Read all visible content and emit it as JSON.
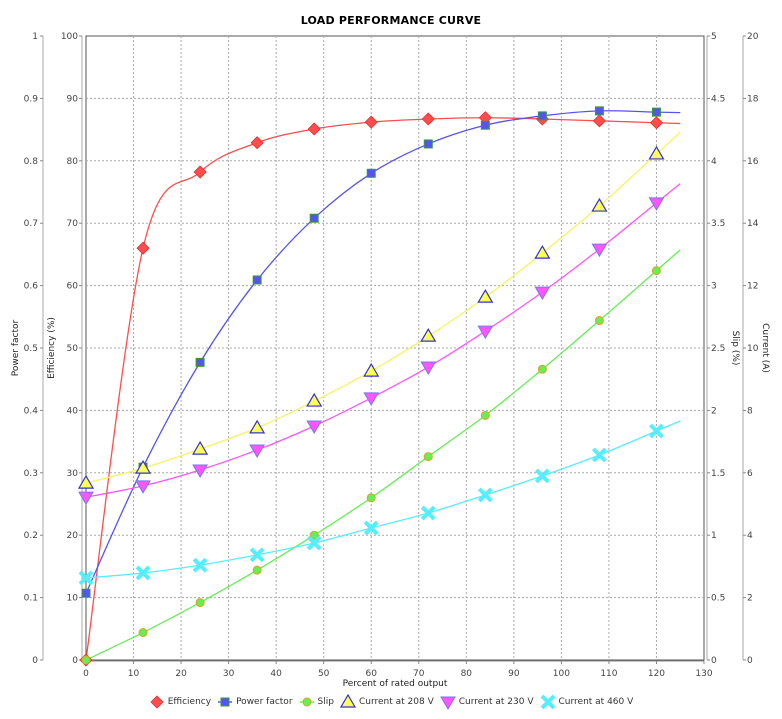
{
  "chart_data": {
    "type": "line",
    "title": "LOAD PERFORMANCE CURVE",
    "xlabel": "Percent of rated output",
    "xlim": [
      0,
      130
    ],
    "xticks": [
      0,
      10,
      20,
      30,
      40,
      50,
      60,
      70,
      80,
      90,
      100,
      110,
      120,
      130
    ],
    "x": [
      0,
      12,
      24,
      36,
      48,
      60,
      72,
      84,
      96,
      108,
      120
    ],
    "axes": {
      "power_factor": {
        "label": "Power factor",
        "side": "left-outer",
        "range": [
          0,
          1
        ],
        "ticks": [
          "0",
          "0.1",
          "0.2",
          "0.3",
          "0.4",
          "0.5",
          "0.6",
          "0.7",
          "0.8",
          "0.9",
          "1"
        ]
      },
      "efficiency": {
        "label": "Efficiency (%)",
        "side": "left-inner",
        "range": [
          0,
          100
        ],
        "ticks": [
          "0",
          "10",
          "20",
          "30",
          "40",
          "50",
          "60",
          "70",
          "80",
          "90",
          "100"
        ]
      },
      "slip": {
        "label": "Slip (%)",
        "side": "right-inner",
        "range": [
          0,
          5
        ],
        "ticks": [
          "0",
          "0.5",
          "1",
          "1.5",
          "2",
          "2.5",
          "3",
          "3.5",
          "4",
          "4.5",
          "5"
        ]
      },
      "current": {
        "label": "Current (A)",
        "side": "right-outer",
        "range": [
          0,
          20
        ],
        "ticks": [
          "0",
          "2",
          "4",
          "6",
          "8",
          "10",
          "12",
          "14",
          "16",
          "18",
          "20"
        ]
      }
    },
    "grid": true,
    "legend_position": "bottom",
    "series": [
      {
        "name": "Efficiency",
        "axis": "efficiency",
        "color": "#ff4d4d",
        "marker": "diamond",
        "values": [
          0,
          66.0,
          78.2,
          82.9,
          85.1,
          86.2,
          86.7,
          86.9,
          86.7,
          86.4,
          86.1
        ]
      },
      {
        "name": "Power factor",
        "axis": "power_factor",
        "color": "#5555ee",
        "marker": "square",
        "values": [
          0.107,
          0.309,
          0.477,
          0.609,
          0.708,
          0.78,
          0.827,
          0.857,
          0.872,
          0.88,
          0.878
        ]
      },
      {
        "name": "Slip",
        "axis": "slip",
        "color": "#66ee55",
        "marker": "circle",
        "values": [
          0,
          0.22,
          0.46,
          0.72,
          1.0,
          1.3,
          1.63,
          1.96,
          2.33,
          2.72,
          3.12
        ]
      },
      {
        "name": "Current at 208 V",
        "axis": "current",
        "color": "#ffff55",
        "marker": "triangle-up",
        "values": [
          5.67,
          6.15,
          6.76,
          7.44,
          8.3,
          9.26,
          10.38,
          11.63,
          13.04,
          14.55,
          16.22
        ]
      },
      {
        "name": "Current at 230 V",
        "axis": "current",
        "color": "#ff55ff",
        "marker": "triangle-down",
        "values": [
          5.22,
          5.58,
          6.09,
          6.73,
          7.5,
          8.4,
          9.39,
          10.54,
          11.79,
          13.17,
          14.65
        ]
      },
      {
        "name": "Current at 460 V",
        "axis": "current",
        "color": "#55eeff",
        "marker": "x",
        "values": [
          2.63,
          2.79,
          3.04,
          3.37,
          3.75,
          4.23,
          4.71,
          5.29,
          5.9,
          6.57,
          7.34
        ]
      }
    ]
  },
  "legend": {
    "items": [
      "Efficiency",
      "Power factor",
      "Slip",
      "Current at 208 V",
      "Current at 230 V",
      "Current at 460 V"
    ]
  }
}
